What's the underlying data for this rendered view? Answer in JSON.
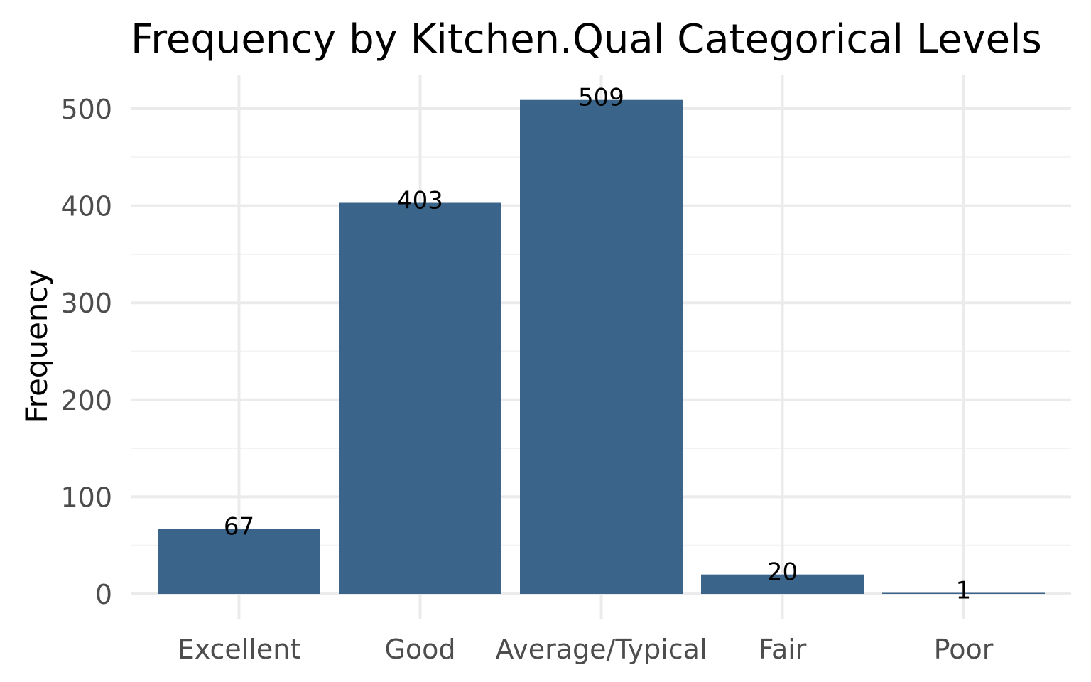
{
  "chart_data": {
    "type": "bar",
    "title": "Frequency by Kitchen.Qual Categorical Levels",
    "xlabel": "",
    "ylabel": "Frequency",
    "categories": [
      "Excellent",
      "Good",
      "Average/Typical",
      "Fair",
      "Poor"
    ],
    "values": [
      67,
      403,
      509,
      20,
      1
    ],
    "data_labels": [
      "67",
      "403",
      "509",
      "20",
      "1"
    ],
    "ylim": [
      0,
      535
    ],
    "yticks": [
      0,
      100,
      200,
      300,
      400,
      500
    ],
    "ytick_labels": [
      "0",
      "100",
      "200",
      "300",
      "400",
      "500"
    ],
    "grid": true,
    "legend": "none",
    "bar_color": "#3a6489"
  }
}
